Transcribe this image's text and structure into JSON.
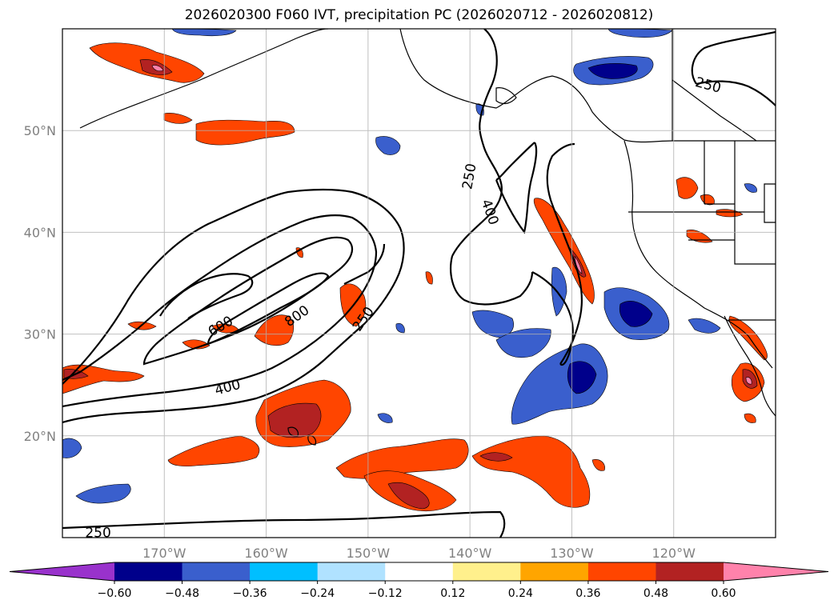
{
  "title": "2026020300 F060 IVT, precipitation PC (2026020712 - 2026020812)",
  "map": {
    "projection": "plate-carree",
    "lon_range": [
      -180,
      -110
    ],
    "lat_range": [
      10,
      60
    ],
    "lat_ticks": [
      {
        "value": 20,
        "label": "20°N"
      },
      {
        "value": 30,
        "label": "30°N"
      },
      {
        "value": 40,
        "label": "40°N"
      },
      {
        "value": 50,
        "label": "50°N"
      }
    ],
    "lon_ticks": [
      {
        "value": -170,
        "label": "170°W"
      },
      {
        "value": -160,
        "label": "160°W"
      },
      {
        "value": -150,
        "label": "150°W"
      },
      {
        "value": -140,
        "label": "140°W"
      },
      {
        "value": -130,
        "label": "130°W"
      },
      {
        "value": -120,
        "label": "120°W"
      }
    ],
    "grid": true,
    "ivt_contours": [
      250,
      400,
      600,
      800
    ],
    "ivt_contour_labels": [
      {
        "text": "250",
        "lon": -150.5,
        "lat": 31.5,
        "angle": -55
      },
      {
        "text": "250",
        "lon": -140.1,
        "lat": 45.5,
        "angle": -80
      },
      {
        "text": "250",
        "lon": -116.6,
        "lat": 54.5,
        "angle": 15
      },
      {
        "text": "250",
        "lon": -176.5,
        "lat": 10.5,
        "angle": 0
      },
      {
        "text": "400",
        "lon": -138.0,
        "lat": 42.0,
        "angle": 70
      },
      {
        "text": "400",
        "lon": -163.8,
        "lat": 24.8,
        "angle": -15
      },
      {
        "text": "600",
        "lon": -164.5,
        "lat": 30.8,
        "angle": -30
      },
      {
        "text": "800",
        "lon": -157.0,
        "lat": 31.8,
        "angle": -35
      }
    ]
  },
  "colorbar": {
    "ticks": [
      "−0.60",
      "−0.48",
      "−0.36",
      "−0.24",
      "−0.12",
      "0.12",
      "0.24",
      "0.36",
      "0.48",
      "0.60"
    ],
    "colors": [
      "#9932cc",
      "#00008b",
      "#3a5fcd",
      "#00bfff",
      "#b0e2ff",
      "#ffffff",
      "#fff08c",
      "#ffa500",
      "#ff4500",
      "#b22222",
      "#ff82ab"
    ],
    "extend": "both"
  }
}
